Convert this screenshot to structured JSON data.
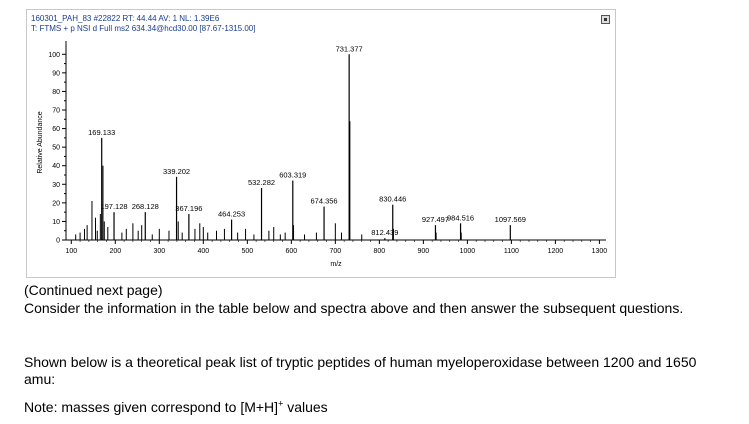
{
  "spectrum": {
    "header_line_1": "160301_PAH_83 #22822  RT: 44.44  AV: 1  NL: 1.39E6",
    "header_line_2": "T: FTMS + p NSI d Full ms2 634.34@hcd30.00 [87.67-1315.00]"
  },
  "chart_data": {
    "type": "bar",
    "xlabel": "m/z",
    "ylabel": "Relative Abundance",
    "xlim": [
      88,
      1315
    ],
    "ylim": [
      0,
      105
    ],
    "x_ticks": [
      "100",
      "200",
      "300",
      "400",
      "500",
      "600",
      "700",
      "800",
      "900",
      "1000",
      "1100",
      "1200",
      "1300"
    ],
    "y_ticks": [
      "0",
      "10",
      "20",
      "30",
      "40",
      "50",
      "60",
      "70",
      "80",
      "90",
      "100"
    ],
    "grid": false,
    "labeled_peaks": [
      {
        "mz": 169.133,
        "intensity": 55,
        "label": "169.133"
      },
      {
        "mz": 197.128,
        "intensity": 15,
        "label": "197.128"
      },
      {
        "mz": 268.128,
        "intensity": 15,
        "label": "268.128"
      },
      {
        "mz": 339.202,
        "intensity": 34,
        "label": "339.202"
      },
      {
        "mz": 367.196,
        "intensity": 14,
        "label": "367.196"
      },
      {
        "mz": 464.253,
        "intensity": 11,
        "label": "464.253"
      },
      {
        "mz": 532.282,
        "intensity": 28,
        "label": "532.282"
      },
      {
        "mz": 603.319,
        "intensity": 32,
        "label": "603.319"
      },
      {
        "mz": 674.356,
        "intensity": 18,
        "label": "674.356"
      },
      {
        "mz": 731.377,
        "intensity": 100,
        "label": "731.377"
      },
      {
        "mz": 812.439,
        "intensity": 1,
        "label": "812.439"
      },
      {
        "mz": 830.446,
        "intensity": 19,
        "label": "830.446"
      },
      {
        "mz": 927.497,
        "intensity": 8,
        "label": "927.497"
      },
      {
        "mz": 984.516,
        "intensity": 9,
        "label": "984.516"
      },
      {
        "mz": 1097.569,
        "intensity": 8,
        "label": "1097.569"
      }
    ],
    "minor_peaks": [
      {
        "mz": 110,
        "intensity": 3
      },
      {
        "mz": 120,
        "intensity": 4
      },
      {
        "mz": 130,
        "intensity": 6
      },
      {
        "mz": 136,
        "intensity": 8
      },
      {
        "mz": 147,
        "intensity": 21
      },
      {
        "mz": 155,
        "intensity": 12
      },
      {
        "mz": 159,
        "intensity": 5
      },
      {
        "mz": 166,
        "intensity": 14
      },
      {
        "mz": 172,
        "intensity": 40
      },
      {
        "mz": 175,
        "intensity": 10
      },
      {
        "mz": 183,
        "intensity": 7
      },
      {
        "mz": 215,
        "intensity": 4
      },
      {
        "mz": 225,
        "intensity": 6
      },
      {
        "mz": 240,
        "intensity": 9
      },
      {
        "mz": 252,
        "intensity": 5
      },
      {
        "mz": 260,
        "intensity": 8
      },
      {
        "mz": 284,
        "intensity": 3
      },
      {
        "mz": 300,
        "intensity": 6
      },
      {
        "mz": 322,
        "intensity": 5
      },
      {
        "mz": 343,
        "intensity": 10
      },
      {
        "mz": 352,
        "intensity": 4
      },
      {
        "mz": 381,
        "intensity": 6
      },
      {
        "mz": 392,
        "intensity": 9
      },
      {
        "mz": 400,
        "intensity": 7
      },
      {
        "mz": 410,
        "intensity": 4
      },
      {
        "mz": 430,
        "intensity": 5
      },
      {
        "mz": 448,
        "intensity": 6
      },
      {
        "mz": 478,
        "intensity": 4
      },
      {
        "mz": 496,
        "intensity": 6
      },
      {
        "mz": 515,
        "intensity": 3
      },
      {
        "mz": 549,
        "intensity": 5
      },
      {
        "mz": 560,
        "intensity": 7
      },
      {
        "mz": 575,
        "intensity": 3
      },
      {
        "mz": 586,
        "intensity": 4
      },
      {
        "mz": 605,
        "intensity": 8
      },
      {
        "mz": 630,
        "intensity": 3
      },
      {
        "mz": 657,
        "intensity": 4
      },
      {
        "mz": 700,
        "intensity": 9
      },
      {
        "mz": 714,
        "intensity": 4
      },
      {
        "mz": 733,
        "intensity": 64
      },
      {
        "mz": 760,
        "intensity": 3
      },
      {
        "mz": 832,
        "intensity": 6
      },
      {
        "mz": 929,
        "intensity": 4
      },
      {
        "mz": 986,
        "intensity": 4
      }
    ]
  },
  "text": {
    "continued": "(Continued next page)",
    "consider": "Consider the information in the table below and spectra above and then answer the subsequent questions.",
    "shown": "Shown below is a theoretical peak list of tryptic peptides of human myeloperoxidase between 1200 and 1650 amu:",
    "note_prefix": "Note: masses given correspond to [M+H]",
    "note_sup": "+",
    "note_suffix": " values"
  }
}
